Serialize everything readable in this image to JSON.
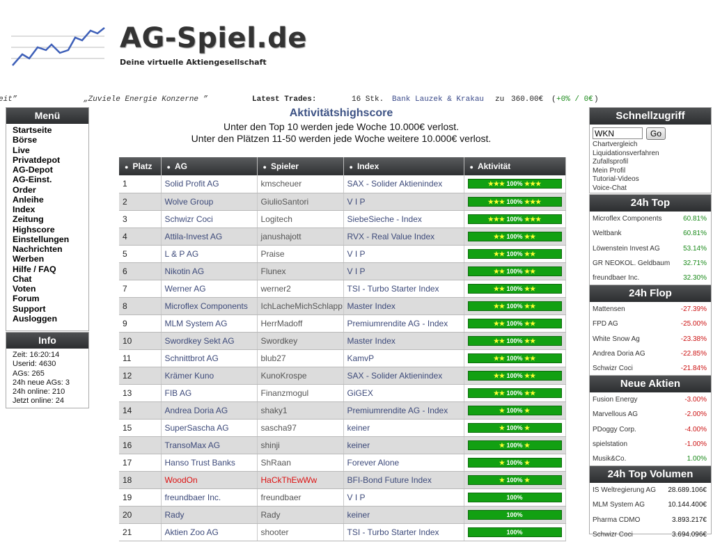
{
  "header": {
    "title": "AG-Spiel.de",
    "subtitle": "Deine virtuelle Aktiengesellschaft"
  },
  "ticker": {
    "fragment_left": "eit”",
    "quote": "„Zuviele Energie Konzerne ”",
    "label": "Latest Trades:",
    "amount": "16 Stk.",
    "company": "Bank Lauzek & Krakau",
    "zu": "zu",
    "price": "360.00€",
    "change_open": "(",
    "change": "+0% / 0€",
    "change_close": ")"
  },
  "menu": {
    "title": "Menü",
    "items": [
      "Startseite",
      "Börse",
      "Live",
      "Privatdepot",
      "AG-Depot",
      "AG-Einst.",
      "Order",
      "Anleihe",
      "Index",
      "Zeitung",
      "Highscore",
      "Einstellungen",
      "Nachrichten",
      "Werben",
      "Hilfe / FAQ",
      "Chat",
      "Voten",
      "Forum",
      "Support",
      "Ausloggen"
    ]
  },
  "info": {
    "title": "Info",
    "lines": [
      "Zeit: 16:20:14",
      "Userid: 4630",
      "AGs: 265",
      "24h neue AGs: 3",
      "24h online: 210",
      "Jetzt online: 24"
    ]
  },
  "main": {
    "title": "Aktivitätshighscore",
    "line1": "Unter den Top 10 werden jede Woche 10.000€ verlost.",
    "line2": "Unter den Plätzen 11-50 werden jede Woche weitere 10.000€ verlost."
  },
  "table": {
    "columns": [
      "Platz",
      "AG",
      "Spieler",
      "Index",
      "Aktivität"
    ],
    "rows": [
      {
        "platz": "1",
        "ag": "Solid Profit AG",
        "player": "kmscheuer",
        "index": "SAX - Solider Aktienindex",
        "stars": "★★★",
        "activity": "100%"
      },
      {
        "platz": "2",
        "ag": "Wolve Group",
        "player": "GiulioSantori",
        "index": "V I P",
        "stars": "★★★",
        "activity": "100%"
      },
      {
        "platz": "3",
        "ag": "Schwizr Coci",
        "player": "Logitech",
        "index": "SiebeSieche - Index",
        "stars": "★★★",
        "activity": "100%"
      },
      {
        "platz": "4",
        "ag": "Attila-Invest AG",
        "player": "janushajott",
        "index": "RVX - Real Value Index",
        "stars": "★★",
        "activity": "100%"
      },
      {
        "platz": "5",
        "ag": "L & P AG",
        "player": "Praise",
        "index": "V I P",
        "stars": "★★",
        "activity": "100%"
      },
      {
        "platz": "6",
        "ag": "Nikotin AG",
        "player": "Flunex",
        "index": "V I P",
        "stars": "★★",
        "activity": "100%"
      },
      {
        "platz": "7",
        "ag": "Werner AG",
        "player": "werner2",
        "index": "TSI - Turbo Starter Index",
        "stars": "★★",
        "activity": "100%"
      },
      {
        "platz": "8",
        "ag": "Microflex Components",
        "player": "IchLacheMichSchlapp",
        "index": "Master Index",
        "stars": "★★",
        "activity": "100%"
      },
      {
        "platz": "9",
        "ag": "MLM System AG",
        "player": "HerrMadoff",
        "index": "Premiumrendite AG - Index",
        "stars": "★★",
        "activity": "100%"
      },
      {
        "platz": "10",
        "ag": "Swordkey Sekt AG",
        "player": "Swordkey",
        "index": "Master Index",
        "stars": "★★",
        "activity": "100%"
      },
      {
        "platz": "11",
        "ag": "Schnittbrot AG",
        "player": "blub27",
        "index": "KamvP",
        "stars": "★★",
        "activity": "100%"
      },
      {
        "platz": "12",
        "ag": "Krämer Kuno",
        "player": "KunoKrospe",
        "index": "SAX - Solider Aktienindex",
        "stars": "★★",
        "activity": "100%"
      },
      {
        "platz": "13",
        "ag": "FIB AG",
        "player": "Finanzmogul",
        "index": "GiGEX",
        "stars": "★★",
        "activity": "100%"
      },
      {
        "platz": "14",
        "ag": "Andrea Doria AG",
        "player": "shaky1",
        "index": "Premiumrendite AG - Index",
        "stars": "★",
        "activity": "100%"
      },
      {
        "platz": "15",
        "ag": "SuperSascha AG",
        "player": "sascha97",
        "index": "keiner",
        "stars": "★",
        "activity": "100%"
      },
      {
        "platz": "16",
        "ag": "TransoMax AG",
        "player": "shinji",
        "index": "keiner",
        "stars": "★",
        "activity": "100%"
      },
      {
        "platz": "17",
        "ag": "Hanso Trust Banks",
        "player": "ShRaan",
        "index": "Forever Alone",
        "stars": "★",
        "activity": "100%"
      },
      {
        "platz": "18",
        "ag": "WoodOn",
        "player": "HaCkThEwWw",
        "index": "BFI-Bond Future Index",
        "stars": "★",
        "activity": "100%",
        "highlight": true
      },
      {
        "platz": "19",
        "ag": "freundbaer Inc.",
        "player": "freundbaer",
        "index": "V I P",
        "stars": "",
        "activity": "100%"
      },
      {
        "platz": "20",
        "ag": "Rady",
        "player": "Rady",
        "index": "keiner",
        "stars": "",
        "activity": "100%"
      },
      {
        "platz": "21",
        "ag": "Aktien Zoo AG",
        "player": "shooter",
        "index": "TSI - Turbo Starter Index",
        "stars": "",
        "activity": "100%"
      }
    ]
  },
  "quick": {
    "title": "Schnellzugriff",
    "input_value": "WKN",
    "go_label": "Go",
    "links": [
      "Chartvergleich",
      "Liquidationsverfahren",
      "Zufallsprofil",
      "Mein Profil",
      "Tutorial-Videos",
      "Voice-Chat"
    ]
  },
  "top24": {
    "title": "24h Top",
    "items": [
      {
        "name": "Microflex Components",
        "value": "60.81%"
      },
      {
        "name": "Weltbank",
        "value": "60.81%"
      },
      {
        "name": "Löwenstein Invest AG",
        "value": "53.14%"
      },
      {
        "name": "GR NEOKOL. Geldbaum",
        "value": "32.71%"
      },
      {
        "name": "freundbaer Inc.",
        "value": "32.30%"
      }
    ]
  },
  "flop24": {
    "title": "24h Flop",
    "items": [
      {
        "name": "Mattensen",
        "value": "-27.39%"
      },
      {
        "name": "FPD AG",
        "value": "-25.00%"
      },
      {
        "name": "White Snow Ag",
        "value": "-23.38%"
      },
      {
        "name": "Andrea Doria AG",
        "value": "-22.85%"
      },
      {
        "name": "Schwizr Coci",
        "value": "-21.84%"
      }
    ]
  },
  "new_stocks": {
    "title": "Neue Aktien",
    "items": [
      {
        "name": "Fusion Energy",
        "value": "-3.00%",
        "sign": "neg"
      },
      {
        "name": "Marvellous AG",
        "value": "-2.00%",
        "sign": "neg"
      },
      {
        "name": "PDoggy Corp.",
        "value": "-4.00%",
        "sign": "neg"
      },
      {
        "name": "spielstation",
        "value": "-1.00%",
        "sign": "neg"
      },
      {
        "name": "Musik&Co.",
        "value": "1.00%",
        "sign": "pos"
      }
    ]
  },
  "volume24": {
    "title": "24h Top Volumen",
    "items": [
      {
        "name": "IS Weltregierung AG",
        "value": "28.689.106€"
      },
      {
        "name": "MLM System AG",
        "value": "10.144.400€"
      },
      {
        "name": "Pharma CDMO",
        "value": "3.893.217€"
      },
      {
        "name": "Schwizr Coci",
        "value": "3.694.096€"
      }
    ]
  },
  "colors": {
    "header_dark": "#2c2e30",
    "bar_green": "#12a012",
    "link_blue": "#3d4a7a",
    "positive": "#1a8a1a",
    "negative": "#cc1111"
  }
}
